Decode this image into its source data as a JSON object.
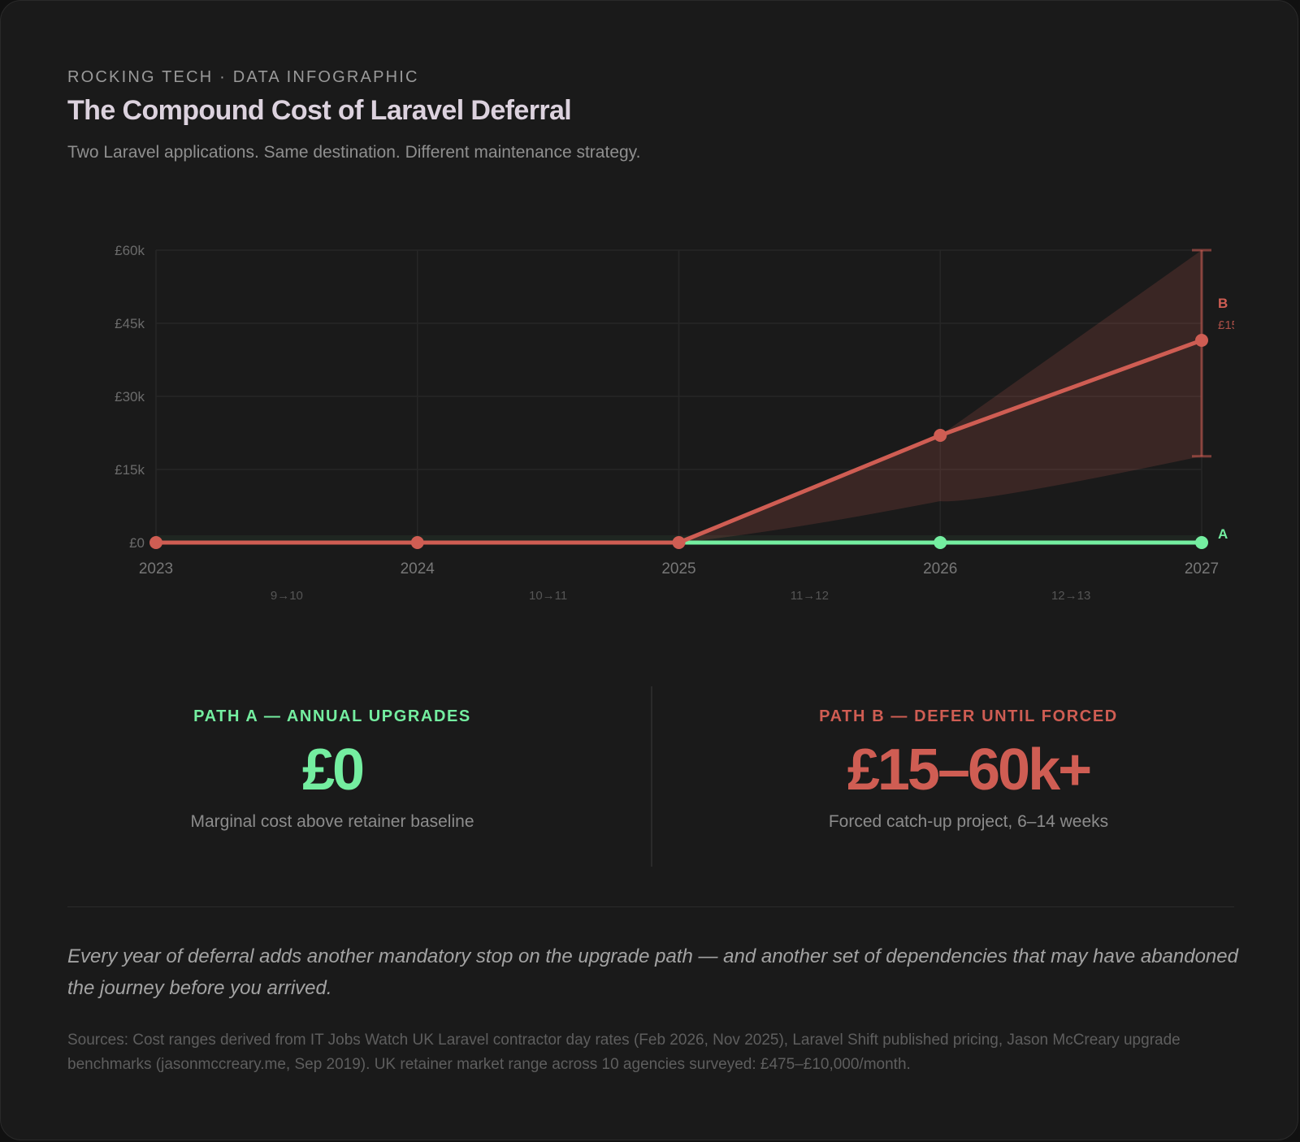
{
  "header": {
    "eyebrow": "ROCKING TECH · DATA INFOGRAPHIC",
    "title": "The Compound Cost of Laravel Deferral",
    "subtitle": "Two Laravel applications. Same destination. Different maintenance strategy."
  },
  "colors": {
    "background": "#1a1a1a",
    "path_a": "#74eea0",
    "path_b": "#cf5d53",
    "band_b": "#3a2424",
    "grid": "#262626",
    "axis_text": "#6b6b6b"
  },
  "chart_data": {
    "type": "line",
    "title": "The Compound Cost of Laravel Deferral",
    "xlabel": "",
    "ylabel": "",
    "x": [
      "2023",
      "2024",
      "2025",
      "2026",
      "2027"
    ],
    "ylim": [
      0,
      60000
    ],
    "y_ticks": [
      "£0",
      "£15k",
      "£30k",
      "£45k",
      "£60k"
    ],
    "y_tick_values": [
      0,
      15000,
      30000,
      45000,
      60000
    ],
    "version_steps": [
      "9→10",
      "10→11",
      "11→12",
      "12→13"
    ],
    "grid": true,
    "series": [
      {
        "name": "A",
        "label": "A",
        "values": [
          0,
          0,
          0,
          0,
          0
        ]
      },
      {
        "name": "B",
        "label": "B",
        "annotation": "£15",
        "values": [
          0,
          0,
          0,
          22000,
          41500
        ],
        "range_upper": [
          0,
          0,
          0,
          22000,
          60000
        ],
        "range_lower": [
          0,
          0,
          0,
          8500,
          17700
        ],
        "error_bar_2027": [
          17700,
          60000
        ]
      }
    ]
  },
  "stats": {
    "path_a": {
      "label": "PATH A — ANNUAL UPGRADES",
      "value": "£0",
      "desc": "Marginal cost above retainer baseline"
    },
    "path_b": {
      "label": "PATH B — DEFER UNTIL FORCED",
      "value": "£15–60k+",
      "desc": "Forced catch-up project, 6–14 weeks"
    }
  },
  "quote": "Every year of deferral adds another mandatory stop on the upgrade path — and another set of dependencies that may have abandoned the journey before you arrived.",
  "sources": "Sources: Cost ranges derived from IT Jobs Watch UK Laravel contractor day rates (Feb 2026, Nov 2025), Laravel Shift published pricing, Jason McCreary upgrade benchmarks (jasonmccreary.me, Sep 2019). UK retainer market range across 10 agencies surveyed: £475–£10,000/month."
}
